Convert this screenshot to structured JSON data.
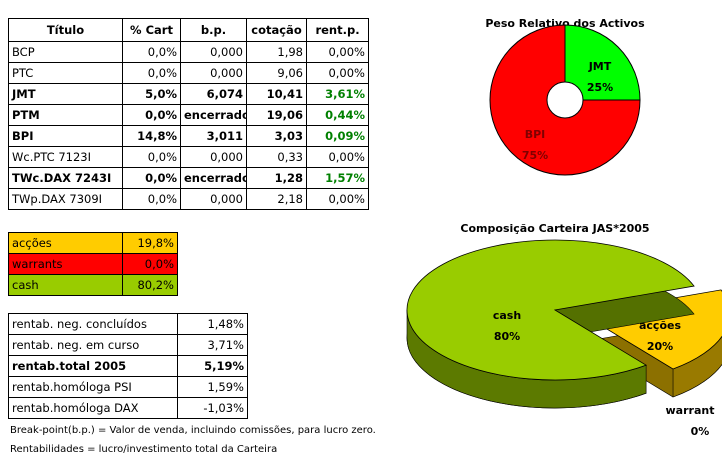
{
  "main_table": {
    "header": [
      "Título",
      "% Cart",
      "b.p.",
      "cotação",
      "rent.p."
    ],
    "rows": [
      [
        "BCP",
        "0,0%",
        "0,000",
        "1,98",
        "0,00%"
      ],
      [
        "PTC",
        "0,0%",
        "0,000",
        "9,06",
        "0,00%"
      ],
      [
        "JMT",
        "5,0%",
        "6,074",
        "10,41",
        "3,61%"
      ],
      [
        "PTM",
        "0,0%",
        "encerrado",
        "19,06",
        "0,44%"
      ],
      [
        "BPI",
        "14,8%",
        "3,011",
        "3,03",
        "0,09%"
      ],
      [
        "Wc.PTC 7123I",
        "0,0%",
        "0,000",
        "0,33",
        "0,00%"
      ],
      [
        "TWc.DAX 7243I",
        "0,0%",
        "encerrado",
        "1,28",
        "1,57%"
      ],
      [
        "TWp.DAX 7309I",
        "0,0%",
        "0,000",
        "2,18",
        "0,00%"
      ]
    ],
    "bold_rows": [
      2,
      3,
      4,
      6
    ]
  },
  "allocation_table": {
    "rows": [
      [
        "acções",
        "19,8%"
      ],
      [
        "warrants",
        "0,0%"
      ],
      [
        "cash",
        "80,2%"
      ]
    ],
    "colors": [
      "#ffcc00",
      "#ff0000",
      "#99cc00"
    ]
  },
  "returns_table": {
    "rows": [
      [
        "rentab. neg. concluídos",
        "1,48%"
      ],
      [
        "rentab. neg. em curso",
        "3,71%"
      ],
      [
        "rentab.total 2005",
        "5,19%"
      ],
      [
        "rentab.homóloga PSI",
        "1,59%"
      ],
      [
        "rentab.homóloga DAX",
        "-1,03%"
      ]
    ],
    "bold_rows": [
      2
    ]
  },
  "notes": [
    "Break-point(b.p.) = Valor de venda, incluindo comissões, para lucro zero.",
    "Rentabilidades = lucro/investimento total da Carteira"
  ],
  "chart_data": [
    {
      "type": "donut",
      "title": "Peso Relativo dos Activos",
      "categories": [
        "JMT",
        "BPI"
      ],
      "values": [
        25,
        75
      ],
      "value_labels": [
        "25%",
        "75%"
      ],
      "colors": [
        "#00ff00",
        "#ff0000"
      ]
    },
    {
      "type": "pie3d",
      "title": "Composição Carteira JAS*2005",
      "categories": [
        "acções",
        "warrant",
        "cash"
      ],
      "values": [
        20,
        0,
        80
      ],
      "value_labels": [
        "20%",
        "0%",
        "80%"
      ],
      "colors": [
        "#ffcc00",
        "#ff0000",
        "#99cc00"
      ]
    }
  ]
}
